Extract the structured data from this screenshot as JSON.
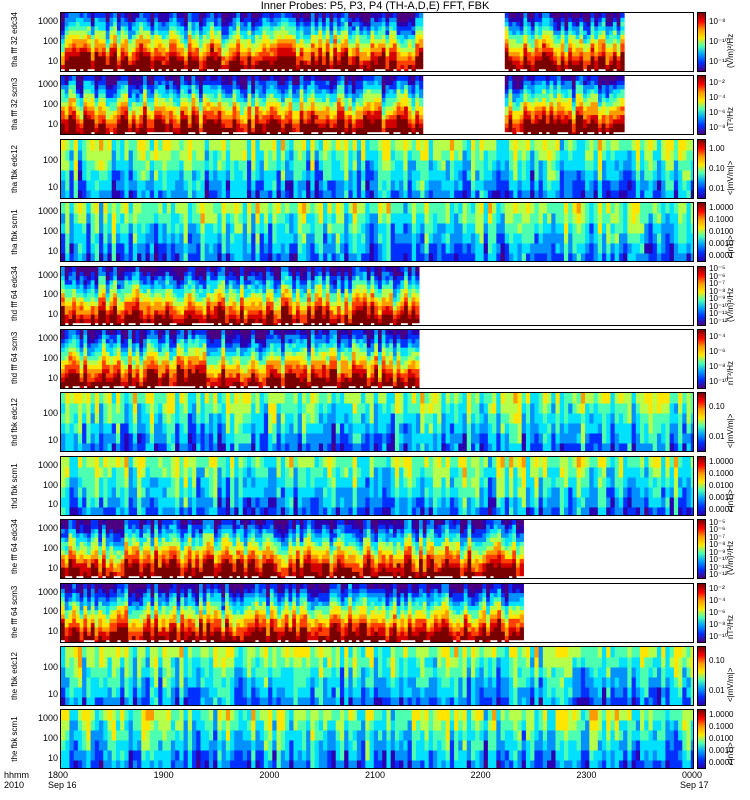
{
  "title": "Inner Probes: P5, P3, P4 (TH-A,D,E) FFT, FBK",
  "x_axis": {
    "row_label": "hhmm",
    "year_label": "2010",
    "ticks": [
      "1800",
      "1900",
      "2000",
      "2100",
      "2200",
      "2300",
      "0000"
    ],
    "date_labels": {
      "start": "Sep 16",
      "end": "Sep 17"
    }
  },
  "chart_data": [
    {
      "type": "heatmap",
      "probe": "tha",
      "ylabel": "tha\nfff\n32\nedc34",
      "yticks": [
        "1000",
        "100",
        "10"
      ],
      "colorbar_ticks": [
        "10⁻⁸",
        "10⁻¹⁰",
        "10⁻¹²"
      ],
      "colorbar_unit": "(V/m)²/Hz",
      "data_end_fraction": 0.884,
      "gaps": [
        [
          0.569,
          0.7
        ]
      ]
    },
    {
      "type": "heatmap",
      "probe": "tha",
      "ylabel": "tha\nfff\n32\nscm3",
      "yticks": [
        "1000",
        "100",
        "10"
      ],
      "colorbar_ticks": [
        "10⁻²",
        "10⁻⁴",
        "10⁻⁶",
        "10⁻⁸"
      ],
      "colorbar_unit": "nT²/Hz",
      "data_end_fraction": 0.884,
      "gaps": [
        [
          0.569,
          0.7
        ]
      ]
    },
    {
      "type": "heatmap",
      "probe": "tha",
      "ylabel": "tha\nfbk\nedc12",
      "yticks": [
        "100",
        "10"
      ],
      "colorbar_ticks": [
        "1.00",
        "0.10",
        "0.01"
      ],
      "colorbar_unit": "<|mV/m|>",
      "data_end_fraction": 1.0,
      "gaps": []
    },
    {
      "type": "heatmap",
      "probe": "tha",
      "ylabel": "tha\nfbk\nscm1",
      "yticks": [
        "1000",
        "100",
        "10"
      ],
      "colorbar_ticks": [
        "1.0000",
        "0.1000",
        "0.0100",
        "0.0010",
        "0.0001"
      ],
      "colorbar_unit": "<|nT|>",
      "data_end_fraction": 1.0,
      "gaps": []
    },
    {
      "type": "heatmap",
      "probe": "thd",
      "ylabel": "thd\nfff\n64\nedc34",
      "yticks": [
        "1000",
        "100",
        "10"
      ],
      "colorbar_ticks": [
        "10⁻⁵",
        "10⁻⁶",
        "10⁻⁷",
        "10⁻⁸",
        "10⁻⁹",
        "10⁻¹⁰",
        "10⁻¹¹",
        "10⁻¹²"
      ],
      "colorbar_unit": "(V/m)²/Hz",
      "data_end_fraction": 0.561,
      "gaps": []
    },
    {
      "type": "heatmap",
      "probe": "thd",
      "ylabel": "thd\nfff\n64\nscm3",
      "yticks": [
        "1000",
        "100",
        "10"
      ],
      "colorbar_ticks": [
        "10⁻⁴",
        "10⁻⁶",
        "10⁻⁸",
        "10⁻¹⁰"
      ],
      "colorbar_unit": "nT²/Hz",
      "data_end_fraction": 0.561,
      "gaps": []
    },
    {
      "type": "heatmap",
      "probe": "thd",
      "ylabel": "thd\nfbk\nedc12",
      "yticks": [
        "100",
        "10"
      ],
      "colorbar_ticks": [
        "0.10",
        "0.01"
      ],
      "colorbar_unit": "<|mV/m|>",
      "data_end_fraction": 1.0,
      "gaps": []
    },
    {
      "type": "heatmap",
      "probe": "thd",
      "ylabel": "thd\nfbk\nscm1",
      "yticks": [
        "1000",
        "100",
        "10"
      ],
      "colorbar_ticks": [
        "1.0000",
        "0.1000",
        "0.0100",
        "0.0010",
        "0.0001"
      ],
      "colorbar_unit": "<|nT|>",
      "data_end_fraction": 1.0,
      "gaps": []
    },
    {
      "type": "heatmap",
      "probe": "the",
      "ylabel": "the\nfff\n64\nedc34",
      "yticks": [
        "1000",
        "100",
        "10"
      ],
      "colorbar_ticks": [
        "10⁻⁵",
        "10⁻⁶",
        "10⁻⁷",
        "10⁻⁸",
        "10⁻⁹",
        "10⁻¹⁰",
        "10⁻¹¹",
        "10⁻¹²"
      ],
      "colorbar_unit": "(V/m)²/Hz",
      "data_end_fraction": 0.724,
      "gaps": []
    },
    {
      "type": "heatmap",
      "probe": "the",
      "ylabel": "the\nfff\n64\nscm3",
      "yticks": [
        "1000",
        "100",
        "10"
      ],
      "colorbar_ticks": [
        "10⁻²",
        "10⁻⁴",
        "10⁻⁶",
        "10⁻⁸",
        "10⁻¹⁰"
      ],
      "colorbar_unit": "nT²/Hz",
      "data_end_fraction": 0.724,
      "gaps": []
    },
    {
      "type": "heatmap",
      "probe": "the",
      "ylabel": "the\nfbk\nedc12",
      "yticks": [
        "100",
        "10"
      ],
      "colorbar_ticks": [
        "0.10",
        "0.01"
      ],
      "colorbar_unit": "<|mV/m|>",
      "data_end_fraction": 1.0,
      "gaps": []
    },
    {
      "type": "heatmap",
      "probe": "the",
      "ylabel": "the\nfbk\nscm1",
      "yticks": [
        "1000",
        "100",
        "10"
      ],
      "colorbar_ticks": [
        "1.0000",
        "0.1000",
        "0.0100",
        "0.0010",
        "0.0001"
      ],
      "colorbar_unit": "<|nT|>",
      "data_end_fraction": 1.0,
      "gaps": []
    }
  ]
}
